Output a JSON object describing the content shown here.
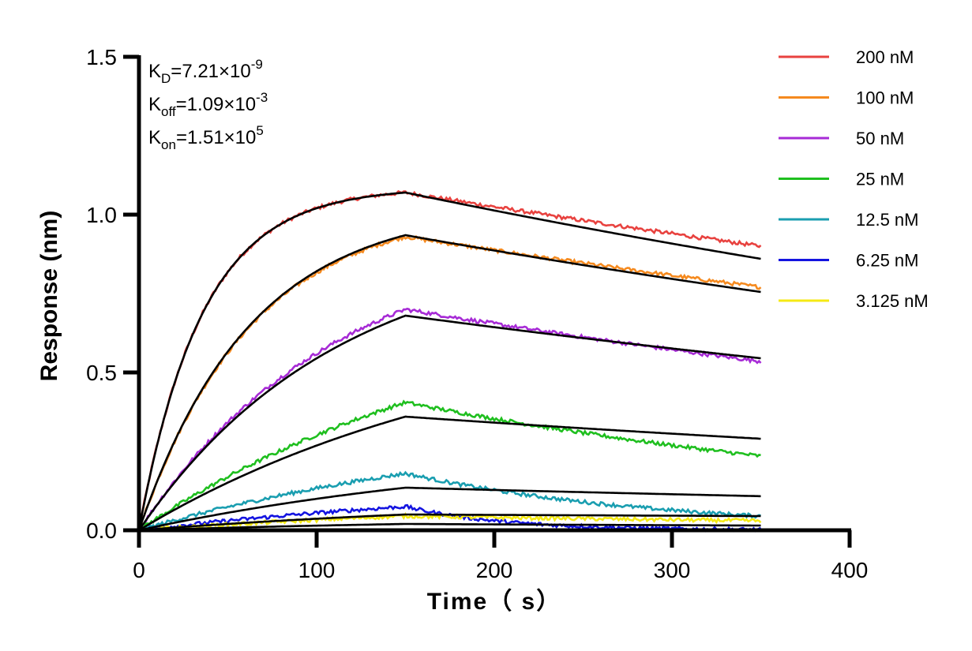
{
  "chart_data": {
    "type": "line",
    "title": "",
    "xlabel": "Time（ s）",
    "ylabel": "Response (nm)",
    "xlim": [
      0,
      400
    ],
    "ylim": [
      0,
      1.5
    ],
    "x_ticks": [
      "0",
      "100",
      "200",
      "300",
      "400"
    ],
    "y_ticks": [
      "0.0",
      "0.5",
      "1.0",
      "1.5"
    ],
    "grid": false,
    "legend_position": "right",
    "association_end": 150,
    "dissociation_end": 350,
    "annotations": [
      {
        "base": "K",
        "sub": "D",
        "rest": "=7.21×10",
        "sup": "-9"
      },
      {
        "base": "K",
        "sub": "off",
        "rest": "=1.09×10",
        "sup": "-3"
      },
      {
        "base": "K",
        "sub": "on",
        "rest": "=1.51×10",
        "sup": "5"
      }
    ],
    "fit_color": "#000000",
    "series": [
      {
        "name": "200 nM",
        "color": "#e8423f",
        "peak": 1.07,
        "fit_peak": 1.07,
        "end": 0.9,
        "fit_end": 0.86
      },
      {
        "name": "100 nM",
        "color": "#f58a1f",
        "peak": 0.93,
        "fit_peak": 0.935,
        "end": 0.77,
        "fit_end": 0.755
      },
      {
        "name": "50 nM",
        "color": "#a72bd6",
        "peak": 0.7,
        "fit_peak": 0.68,
        "end": 0.535,
        "fit_end": 0.545
      },
      {
        "name": "25 nM",
        "color": "#1fbf1f",
        "peak": 0.405,
        "fit_peak": 0.36,
        "end": 0.235,
        "fit_end": 0.29
      },
      {
        "name": "12.5 nM",
        "color": "#1a9eb0",
        "peak": 0.18,
        "fit_peak": 0.135,
        "end": 0.045,
        "fit_end": 0.108
      },
      {
        "name": "6.25 nM",
        "color": "#1414e0",
        "peak": 0.075,
        "fit_peak": 0.05,
        "end": 0.002,
        "fit_end": 0.045
      },
      {
        "name": "3.125 nM",
        "color": "#f5ea14",
        "peak": 0.045,
        "fit_peak": 0.02,
        "end": 0.0,
        "fit_end": 0.015
      }
    ]
  }
}
